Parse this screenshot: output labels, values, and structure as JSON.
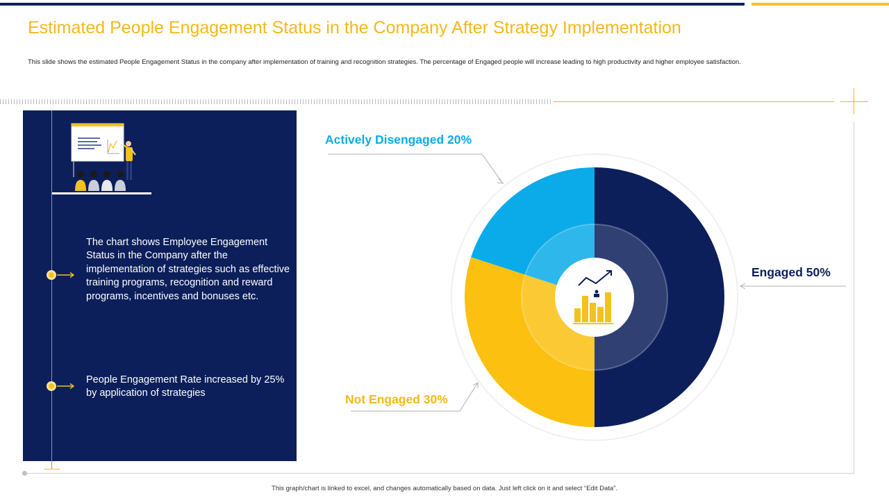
{
  "title": "Estimated People Engagement Status in the Company After Strategy Implementation",
  "subtitle": "This slide shows the estimated People Engagement  Status in the company after implementation  of training and recognition strategies. The percentage of Engaged people will increase leading to high productivity and higher employee satisfaction.",
  "panel": {
    "point1": "The chart shows Employee Engagement Status in the Company after the implementation of strategies such as effective training programs, recognition and reward programs, incentives and bonuses etc.",
    "point2": "People Engagement Rate increased by 25% by application of strategies"
  },
  "chart_data": {
    "type": "pie",
    "title": "",
    "categories": [
      "Engaged",
      "Not Engaged",
      "Actively Disengaged"
    ],
    "values": [
      50,
      30,
      20
    ],
    "unit": "%",
    "colors": [
      "#0c1f5b",
      "#fbc010",
      "#0aabe8"
    ],
    "labels": {
      "engaged": "Engaged 50%",
      "not_engaged": "Not Engaged 30%",
      "actively_disengaged": "Actively Disengaged 20%"
    },
    "label_colors": {
      "engaged": "#0c1f5b",
      "not_engaged": "#f3b81b",
      "actively_disengaged": "#0aabe8"
    },
    "center_icon": "growth-chart-icon"
  },
  "footnote": "This graph/chart is linked to excel, and changes automatically based on data. Just left click on it and select “Edit Data”."
}
